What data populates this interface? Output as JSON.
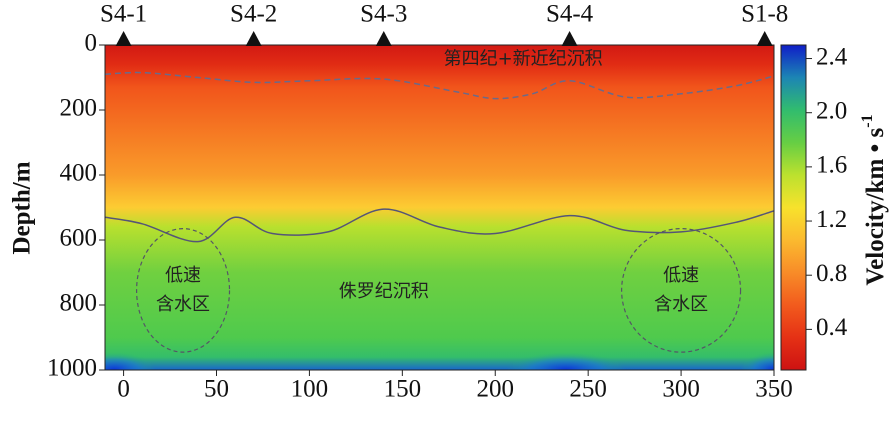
{
  "chart_data": {
    "type": "heatmap",
    "xlabel": "",
    "ylabel": "Depth/m",
    "colorbar_label": "Velocity/km • s",
    "colorbar_label_superscript": "-1",
    "xlim": [
      -10,
      350
    ],
    "ylim": [
      0,
      1000
    ],
    "x_ticks": [
      0,
      50,
      100,
      150,
      200,
      250,
      300,
      350
    ],
    "y_ticks": [
      0,
      200,
      400,
      600,
      800,
      1000
    ],
    "colorbar_range": [
      0.1,
      2.5
    ],
    "colorbar_ticks": [
      0.4,
      0.8,
      1.2,
      1.6,
      2.0,
      2.4
    ],
    "stations": [
      {
        "label": "S4-1",
        "x": 0
      },
      {
        "label": "S4-2",
        "x": 70
      },
      {
        "label": "S4-3",
        "x": 140
      },
      {
        "label": "S4-4",
        "x": 240
      },
      {
        "label": "S1-8",
        "x": 345
      }
    ],
    "boundary_upper": {
      "style": "dashed",
      "x": [
        -10,
        10,
        40,
        70,
        100,
        140,
        180,
        200,
        220,
        240,
        270,
        300,
        330,
        350
      ],
      "y": [
        90,
        85,
        100,
        115,
        110,
        105,
        145,
        165,
        150,
        110,
        160,
        150,
        125,
        95
      ]
    },
    "boundary_lower": {
      "style": "solid",
      "x": [
        -10,
        10,
        40,
        60,
        80,
        110,
        140,
        170,
        200,
        240,
        270,
        300,
        330,
        350
      ],
      "y": [
        530,
        550,
        605,
        530,
        580,
        575,
        505,
        560,
        580,
        525,
        570,
        575,
        545,
        510
      ]
    },
    "annotations": [
      {
        "id": "quaternary",
        "text": "第四纪+新近纪沉积",
        "x": 215,
        "y": 45
      },
      {
        "id": "jurassic",
        "text": "侏罗纪沉积",
        "x": 140,
        "y": 760
      },
      {
        "id": "low-left-1",
        "text": "低速",
        "x": 32,
        "y": 710
      },
      {
        "id": "low-left-2",
        "text": "含水区",
        "x": 32,
        "y": 800
      },
      {
        "id": "low-right-1",
        "text": "低速",
        "x": 300,
        "y": 710
      },
      {
        "id": "low-right-2",
        "text": "含水区",
        "x": 300,
        "y": 800
      }
    ],
    "ellipses": [
      {
        "cx": 32,
        "cy": 755,
        "rx": 25,
        "ry": 190
      },
      {
        "cx": 300,
        "cy": 755,
        "rx": 32,
        "ry": 190
      }
    ],
    "velocity_layers": [
      {
        "depth": 0,
        "v": 0.15
      },
      {
        "depth": 60,
        "v": 0.3
      },
      {
        "depth": 130,
        "v": 0.55
      },
      {
        "depth": 250,
        "v": 0.7
      },
      {
        "depth": 400,
        "v": 0.9
      },
      {
        "depth": 500,
        "v": 1.15
      },
      {
        "depth": 560,
        "v": 1.55
      },
      {
        "depth": 700,
        "v": 1.75
      },
      {
        "depth": 900,
        "v": 1.85
      },
      {
        "depth": 960,
        "v": 2.0
      },
      {
        "depth": 1000,
        "v": 2.35
      }
    ]
  }
}
